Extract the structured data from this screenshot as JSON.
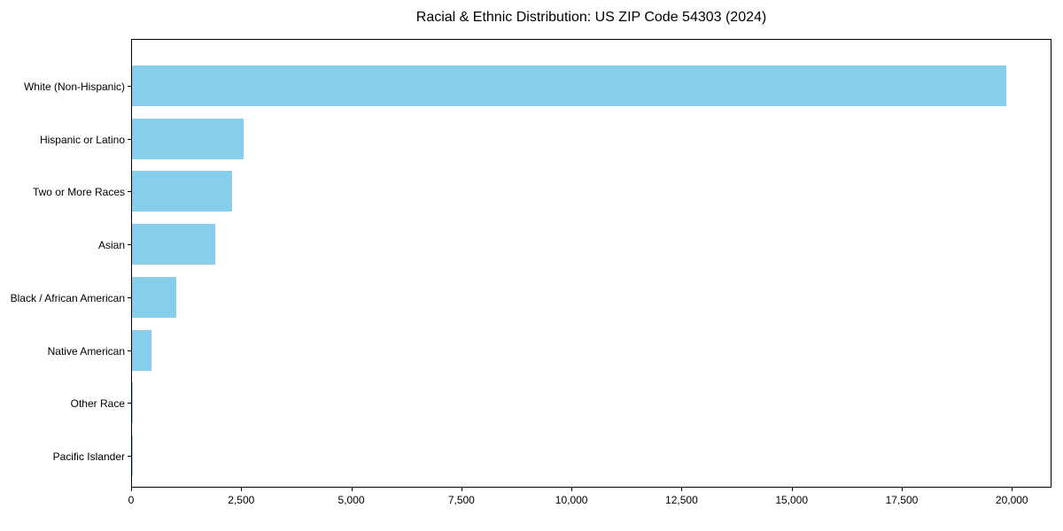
{
  "chart_data": {
    "type": "bar",
    "orientation": "horizontal",
    "title": "Racial & Ethnic Distribution: US ZIP Code 54303 (2024)",
    "categories": [
      "White (Non-Hispanic)",
      "Hispanic or Latino",
      "Two or More Races",
      "Asian",
      "Black / African American",
      "Native American",
      "Other Race",
      "Pacific Islander"
    ],
    "values": [
      19900,
      2540,
      2280,
      1890,
      1010,
      450,
      15,
      5
    ],
    "xlabel": "",
    "ylabel": "",
    "xlim": [
      0,
      20900
    ],
    "xticks": [
      0,
      2500,
      5000,
      7500,
      10000,
      12500,
      15000,
      17500,
      20000
    ],
    "xtick_labels": [
      "0",
      "2,500",
      "5,000",
      "7,500",
      "10,000",
      "12,500",
      "15,000",
      "17,500",
      "20,000"
    ],
    "bar_color": "#87CEEB",
    "background_color": "#FFFFFF",
    "text_color": "#000000",
    "grid": false,
    "legend": null
  }
}
